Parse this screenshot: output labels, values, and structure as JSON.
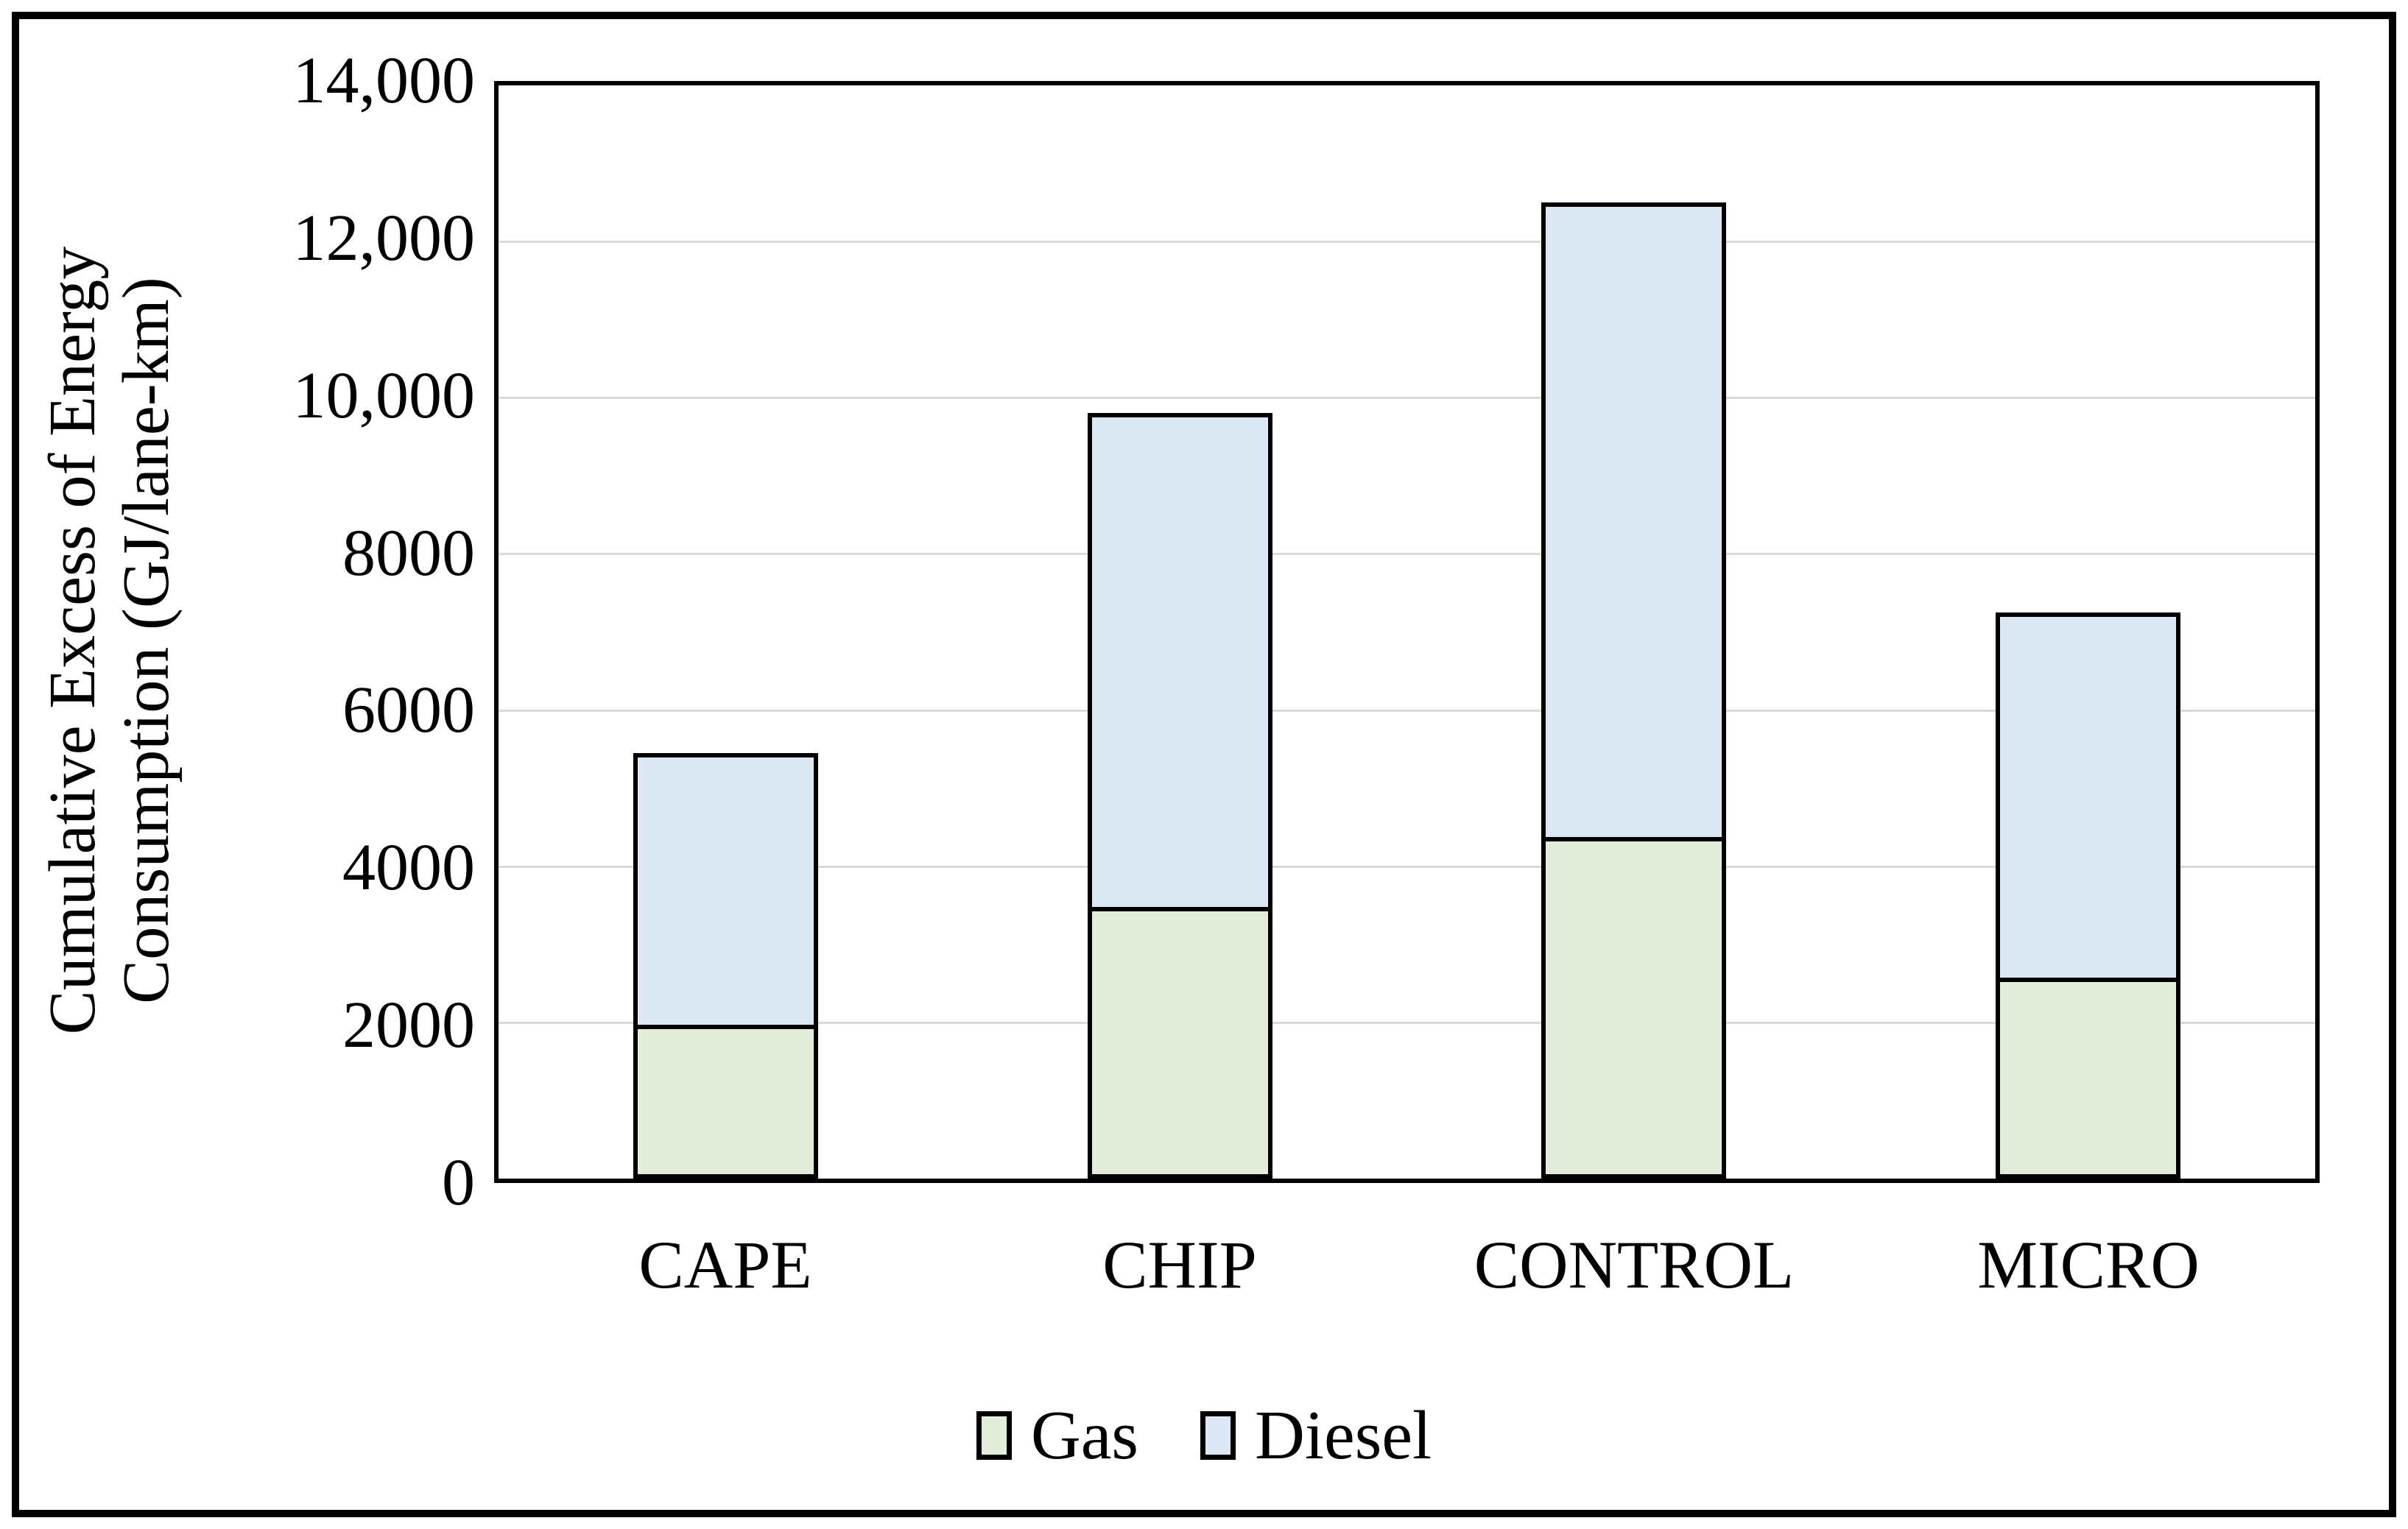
{
  "chart_data": {
    "type": "bar",
    "stacked": true,
    "categories": [
      "CAPE",
      "CHIP",
      "CONTROL",
      "MICRO"
    ],
    "series": [
      {
        "name": "Gas",
        "color": "#e2eeda",
        "values": [
          1900,
          3400,
          4300,
          2500
        ]
      },
      {
        "name": "Diesel",
        "color": "#dce8f4",
        "values": [
          3550,
          6400,
          8200,
          4750
        ]
      }
    ],
    "stack_totals": [
      5450,
      9800,
      12500,
      7250
    ],
    "ylabel": "Cumulative Excess of Energy Consumption (GJ/lane-km)",
    "ylabel_line1": "Cumulative Excess of Energy",
    "ylabel_line2": "Consumption (GJ/lane-km)",
    "xlabel": "",
    "title": "",
    "ylim": [
      0,
      14000
    ],
    "y_ticks": [
      {
        "label": "14,000",
        "value": 14000
      },
      {
        "label": "12,000",
        "value": 12000
      },
      {
        "label": "10,000",
        "value": 10000
      },
      {
        "label": "8000",
        "value": 8000
      },
      {
        "label": "6000",
        "value": 6000
      },
      {
        "label": "4000",
        "value": 4000
      },
      {
        "label": "2000",
        "value": 2000
      },
      {
        "label": "0",
        "value": 0
      }
    ],
    "grid": "horizontal",
    "legend_position": "bottom-center",
    "colors": {
      "gridline": "#d9d9d9",
      "axis": "#000000",
      "bar_border": "#000000",
      "frame": "#000000",
      "background": "#ffffff"
    }
  }
}
